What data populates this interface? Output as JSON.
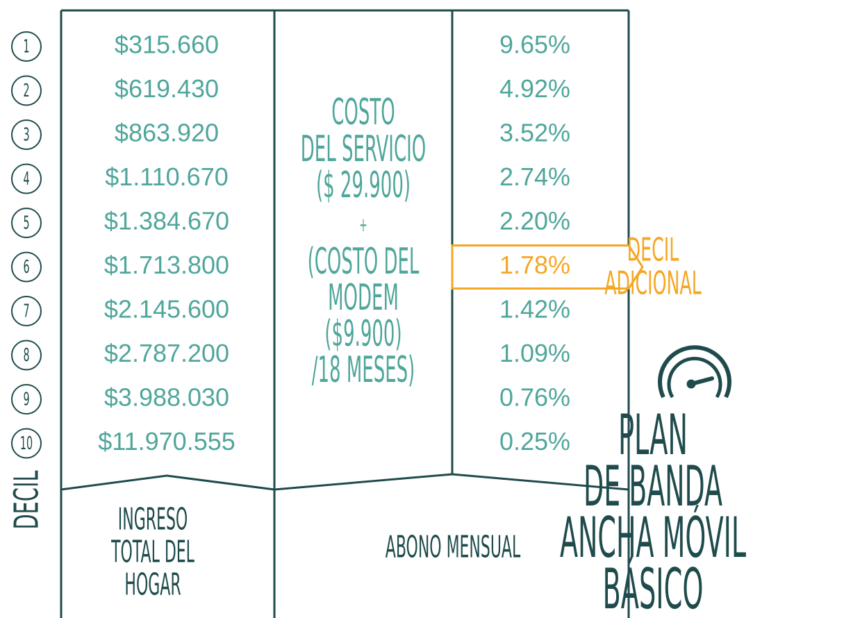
{
  "decil_label": "DECIL",
  "rows": [
    {
      "decil": "1",
      "ingreso": "$315.660",
      "porcentaje": "9.65%"
    },
    {
      "decil": "2",
      "ingreso": "$619.430",
      "porcentaje": "4.92%"
    },
    {
      "decil": "3",
      "ingreso": "$863.920",
      "porcentaje": "3.52%"
    },
    {
      "decil": "4",
      "ingreso": "$1.110.670",
      "porcentaje": "2.74%"
    },
    {
      "decil": "5",
      "ingreso": "$1.384.670",
      "porcentaje": "2.20%"
    },
    {
      "decil": "6",
      "ingreso": "$1.713.800",
      "porcentaje": "1.78%"
    },
    {
      "decil": "7",
      "ingreso": "$2.145.600",
      "porcentaje": "1.42%"
    },
    {
      "decil": "8",
      "ingreso": "$2.787.200",
      "porcentaje": "1.09%"
    },
    {
      "decil": "9",
      "ingreso": "$3.988.030",
      "porcentaje": "0.76%"
    },
    {
      "decil": "10",
      "ingreso": "$11.970.555",
      "porcentaje": "0.25%"
    }
  ],
  "middle_text": [
    "COSTO",
    "DEL SERVICIO",
    "($ 29.900)",
    "+",
    "(COSTO DEL",
    "MODEM",
    "($9.900)",
    "/18 MESES)"
  ],
  "highlight": {
    "row": 5,
    "label": [
      "DECIL",
      "ADICIONAL"
    ]
  },
  "headers": {
    "ingreso": [
      "INGRESO",
      "TOTAL DEL",
      "HOGAR"
    ],
    "abono": "ABONO MENSUAL"
  },
  "title": [
    "PLAN",
    "DE BANDA",
    "ANCHA MÓVIL",
    "BÁSICO"
  ]
}
